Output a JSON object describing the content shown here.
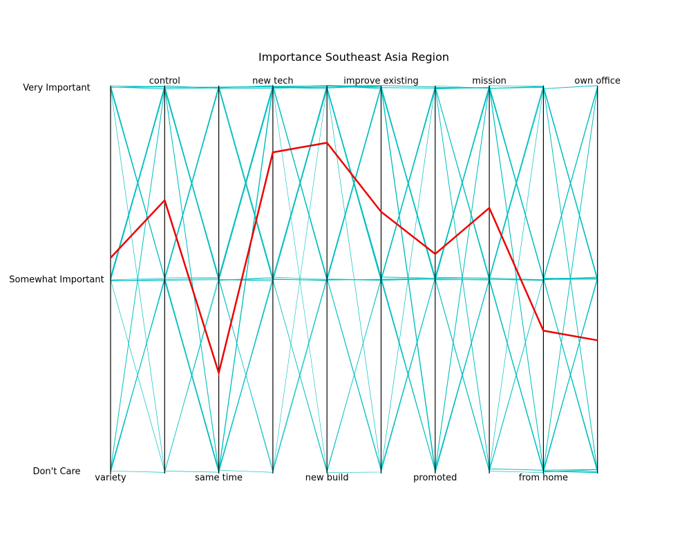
{
  "chart_data": {
    "type": "parallel-coordinates",
    "title": "Importance Southeast Asia Region",
    "axes": [
      "variety",
      "control",
      "same time",
      "new tech",
      "new build",
      "improve existing",
      "promoted",
      "mission",
      "from home",
      "own office"
    ],
    "levels": [
      {
        "label": "Don't Care",
        "value": 0
      },
      {
        "label": "Somewhat Important",
        "value": 1
      },
      {
        "label": "Very Important",
        "value": 2
      }
    ],
    "ylim": [
      0,
      2
    ],
    "highlight": {
      "color": "#ee0000",
      "values": [
        1.11,
        1.41,
        0.51,
        1.66,
        1.71,
        1.35,
        1.13,
        1.37,
        0.73,
        0.68
      ]
    },
    "background_color": "#00bfbf",
    "background_series": [
      {
        "values": [
          2,
          2,
          1,
          2,
          2,
          2,
          1,
          2,
          1,
          0
        ],
        "weight": 1
      },
      {
        "values": [
          2,
          1,
          0,
          1,
          2,
          1,
          2,
          1,
          0,
          1
        ],
        "weight": 1
      },
      {
        "values": [
          1,
          2,
          1,
          2,
          1,
          2,
          1,
          2,
          2,
          1
        ],
        "weight": 1
      },
      {
        "values": [
          0,
          1,
          0,
          2,
          1,
          1,
          0,
          1,
          0,
          0
        ],
        "weight": 1
      },
      {
        "values": [
          1,
          0,
          1,
          1,
          2,
          2,
          1,
          0,
          1,
          2
        ],
        "weight": 0.7
      },
      {
        "values": [
          2,
          1,
          2,
          2,
          2,
          1,
          2,
          2,
          1,
          1
        ],
        "weight": 1
      },
      {
        "values": [
          1,
          2,
          0,
          2,
          2,
          2,
          0,
          1,
          0,
          0
        ],
        "weight": 1
      },
      {
        "values": [
          0,
          1,
          1,
          0,
          1,
          0,
          1,
          2,
          2,
          1
        ],
        "weight": 0.7
      },
      {
        "values": [
          2,
          2,
          2,
          1,
          1,
          1,
          1,
          1,
          1,
          1
        ],
        "weight": 1
      },
      {
        "values": [
          1,
          1,
          1,
          2,
          2,
          1,
          0,
          2,
          0,
          2
        ],
        "weight": 1
      },
      {
        "values": [
          2,
          1,
          1,
          2,
          0,
          0,
          1,
          0,
          1,
          0
        ],
        "weight": 0.6
      },
      {
        "values": [
          1,
          2,
          2,
          1,
          2,
          1,
          2,
          1,
          2,
          1
        ],
        "weight": 1
      },
      {
        "values": [
          0,
          2,
          1,
          1,
          1,
          2,
          2,
          2,
          1,
          0
        ],
        "weight": 1
      },
      {
        "values": [
          1,
          1,
          0,
          0,
          1,
          1,
          1,
          0,
          0,
          1
        ],
        "weight": 0.7
      },
      {
        "values": [
          2,
          2,
          1,
          2,
          1,
          2,
          1,
          1,
          2,
          2
        ],
        "weight": 1
      },
      {
        "values": [
          1,
          1,
          2,
          1,
          0,
          1,
          2,
          2,
          1,
          1
        ],
        "weight": 0.7
      },
      {
        "values": [
          2,
          0,
          0,
          1,
          2,
          0,
          1,
          1,
          0,
          1
        ],
        "weight": 0.7
      },
      {
        "values": [
          1,
          2,
          2,
          2,
          2,
          2,
          2,
          0,
          0,
          0
        ],
        "weight": 1
      },
      {
        "values": [
          0,
          0,
          1,
          2,
          1,
          2,
          0,
          2,
          1,
          1
        ],
        "weight": 0.7
      },
      {
        "values": [
          2,
          1,
          0,
          2,
          2,
          1,
          1,
          2,
          2,
          0
        ],
        "weight": 1
      },
      {
        "values": [
          1,
          2,
          1,
          1,
          2,
          2,
          0,
          1,
          1,
          2
        ],
        "weight": 1
      },
      {
        "values": [
          1,
          1,
          2,
          2,
          1,
          0,
          2,
          2,
          1,
          1
        ],
        "weight": 0.7
      },
      {
        "values": [
          2,
          2,
          0,
          1,
          0,
          1,
          1,
          0,
          2,
          1
        ],
        "weight": 0.7
      },
      {
        "values": [
          0,
          1,
          2,
          2,
          2,
          2,
          1,
          1,
          0,
          0
        ],
        "weight": 1
      },
      {
        "values": [
          1,
          2,
          1,
          0,
          2,
          1,
          2,
          2,
          0,
          1
        ],
        "weight": 0.6
      },
      {
        "values": [
          2,
          1,
          2,
          1,
          1,
          2,
          0,
          1,
          1,
          2
        ],
        "weight": 0.7
      }
    ]
  }
}
